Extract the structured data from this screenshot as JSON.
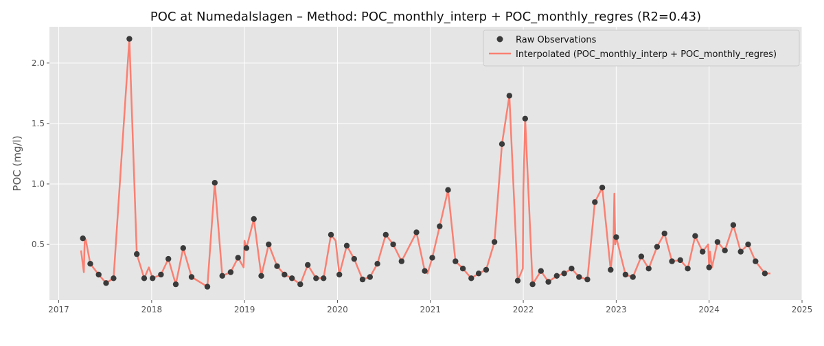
{
  "chart_data": {
    "type": "line",
    "title": "POC at Numedalslagen – Method: POC_monthly_interp + POC_monthly_regres (R2=0.43)",
    "xlabel": "",
    "ylabel": "POC (mg/l)",
    "xlim": [
      2016.9,
      2025.0
    ],
    "ylim": [
      0.04,
      2.3
    ],
    "x_ticks": [
      2017,
      2018,
      2019,
      2020,
      2021,
      2022,
      2023,
      2024,
      2025
    ],
    "x_tick_labels": [
      "2017",
      "2018",
      "2019",
      "2020",
      "2021",
      "2022",
      "2023",
      "2024",
      "2025"
    ],
    "y_ticks": [
      0.5,
      1.0,
      1.5,
      2.0
    ],
    "y_tick_labels": [
      "0.5",
      "1.0",
      "1.5",
      "2.0"
    ],
    "grid": true,
    "legend_position": "top-right",
    "colors": {
      "background": "#e5e5e5",
      "grid": "#ffffff",
      "points": "#3a3a3a",
      "line": "#fa8072",
      "text": "#555555"
    },
    "series": [
      {
        "name": "Raw Observations",
        "kind": "scatter",
        "x": [
          2017.26,
          2017.34,
          2017.43,
          2017.51,
          2017.59,
          2017.76,
          2017.84,
          2017.92,
          2018.01,
          2018.1,
          2018.18,
          2018.26,
          2018.34,
          2018.43,
          2018.6,
          2018.68,
          2018.76,
          2018.85,
          2018.93,
          2019.02,
          2019.1,
          2019.18,
          2019.26,
          2019.35,
          2019.43,
          2019.51,
          2019.6,
          2019.68,
          2019.77,
          2019.85,
          2019.93,
          2020.02,
          2020.1,
          2020.18,
          2020.27,
          2020.35,
          2020.43,
          2020.52,
          2020.6,
          2020.69,
          2020.85,
          2020.94,
          2021.02,
          2021.1,
          2021.19,
          2021.27,
          2021.35,
          2021.44,
          2021.52,
          2021.6,
          2021.69,
          2021.77,
          2021.85,
          2021.94,
          2022.02,
          2022.1,
          2022.19,
          2022.27,
          2022.36,
          2022.44,
          2022.52,
          2022.6,
          2022.69,
          2022.77,
          2022.85,
          2022.94,
          2023.0,
          2023.1,
          2023.18,
          2023.27,
          2023.35,
          2023.44,
          2023.52,
          2023.6,
          2023.69,
          2023.77,
          2023.85,
          2023.93,
          2024.0,
          2024.09,
          2024.17,
          2024.26,
          2024.34,
          2024.42,
          2024.5,
          2024.6
        ],
        "y": [
          0.55,
          0.34,
          0.25,
          0.18,
          0.22,
          2.2,
          0.42,
          0.22,
          0.22,
          0.25,
          0.38,
          0.17,
          0.47,
          0.23,
          0.15,
          1.01,
          0.24,
          0.27,
          0.39,
          0.47,
          0.71,
          0.24,
          0.5,
          0.32,
          0.25,
          0.22,
          0.17,
          0.33,
          0.22,
          0.22,
          0.58,
          0.25,
          0.49,
          0.38,
          0.21,
          0.23,
          0.34,
          0.58,
          0.5,
          0.36,
          0.6,
          0.28,
          0.39,
          0.65,
          0.95,
          0.36,
          0.3,
          0.22,
          0.26,
          0.29,
          0.52,
          1.33,
          1.73,
          0.2,
          1.54,
          0.17,
          0.28,
          0.19,
          0.24,
          0.26,
          0.3,
          0.23,
          0.21,
          0.85,
          0.97,
          0.29,
          0.56,
          0.25,
          0.23,
          0.4,
          0.3,
          0.48,
          0.59,
          0.36,
          0.37,
          0.3,
          0.57,
          0.44,
          0.31,
          0.52,
          0.45,
          0.66,
          0.44,
          0.5,
          0.36,
          0.26
        ]
      },
      {
        "name": "Interpolated (POC_monthly_interp + POC_monthly_regres)",
        "kind": "line",
        "x": [
          2017.24,
          2017.27,
          2017.28,
          2017.29,
          2017.34,
          2017.43,
          2017.51,
          2017.59,
          2017.76,
          2017.84,
          2017.92,
          2017.97,
          2018.01,
          2018.1,
          2018.18,
          2018.26,
          2018.34,
          2018.43,
          2018.6,
          2018.68,
          2018.76,
          2018.85,
          2018.93,
          2018.99,
          2019.0,
          2019.02,
          2019.1,
          2019.18,
          2019.26,
          2019.35,
          2019.43,
          2019.51,
          2019.6,
          2019.68,
          2019.77,
          2019.85,
          2019.93,
          2019.98,
          2020.02,
          2020.1,
          2020.18,
          2020.27,
          2020.35,
          2020.43,
          2020.52,
          2020.6,
          2020.69,
          2020.85,
          2020.94,
          2020.97,
          2021.02,
          2021.1,
          2021.19,
          2021.27,
          2021.35,
          2021.44,
          2021.52,
          2021.6,
          2021.69,
          2021.77,
          2021.85,
          2021.94,
          2021.995,
          2022.0,
          2022.02,
          2022.1,
          2022.19,
          2022.27,
          2022.36,
          2022.44,
          2022.52,
          2022.6,
          2022.69,
          2022.77,
          2022.85,
          2022.94,
          2022.97,
          2022.98,
          2022.99,
          2023.0,
          2023.1,
          2023.18,
          2023.27,
          2023.35,
          2023.44,
          2023.52,
          2023.6,
          2023.69,
          2023.77,
          2023.85,
          2023.93,
          2023.99,
          2024.0,
          2024.01,
          2024.02,
          2024.03,
          2024.09,
          2024.17,
          2024.26,
          2024.34,
          2024.42,
          2024.5,
          2024.6,
          2024.66
        ],
        "y": [
          0.45,
          0.27,
          0.55,
          0.54,
          0.34,
          0.25,
          0.18,
          0.22,
          2.2,
          0.42,
          0.22,
          0.31,
          0.22,
          0.25,
          0.38,
          0.17,
          0.47,
          0.23,
          0.15,
          1.01,
          0.24,
          0.27,
          0.39,
          0.31,
          0.53,
          0.47,
          0.71,
          0.24,
          0.5,
          0.32,
          0.25,
          0.22,
          0.17,
          0.33,
          0.22,
          0.22,
          0.58,
          0.53,
          0.25,
          0.49,
          0.38,
          0.21,
          0.23,
          0.34,
          0.58,
          0.5,
          0.36,
          0.6,
          0.28,
          0.26,
          0.39,
          0.65,
          0.95,
          0.36,
          0.3,
          0.22,
          0.26,
          0.29,
          0.52,
          1.33,
          1.73,
          0.2,
          0.3,
          0.93,
          1.54,
          0.17,
          0.28,
          0.19,
          0.24,
          0.26,
          0.3,
          0.23,
          0.21,
          0.85,
          0.97,
          0.29,
          0.5,
          0.92,
          0.5,
          0.56,
          0.25,
          0.23,
          0.4,
          0.3,
          0.48,
          0.59,
          0.36,
          0.37,
          0.3,
          0.57,
          0.44,
          0.5,
          0.31,
          0.44,
          0.37,
          0.31,
          0.52,
          0.45,
          0.66,
          0.44,
          0.5,
          0.36,
          0.26,
          0.26
        ]
      }
    ]
  }
}
